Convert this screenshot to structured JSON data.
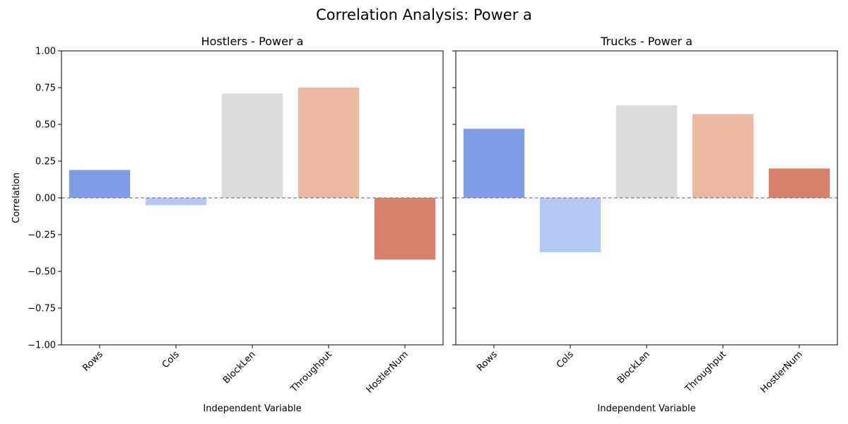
{
  "figure": {
    "suptitle": "Correlation Analysis: Power a"
  },
  "chart_data": [
    {
      "type": "bar",
      "title": "Hostlers - Power a",
      "xlabel": "Independent Variable",
      "ylabel": "Correlation",
      "categories": [
        "Rows",
        "Cols",
        "BlockLen",
        "Throughput",
        "HostlerNum"
      ],
      "values": [
        0.19,
        -0.05,
        0.71,
        0.75,
        -0.42
      ],
      "ylim": [
        -1.0,
        1.0
      ],
      "yticks": [
        "−1.00",
        "−0.75",
        "−0.50",
        "−0.25",
        "0.00",
        "0.25",
        "0.50",
        "0.75",
        "1.00"
      ],
      "ytick_values": [
        -1.0,
        -0.75,
        -0.5,
        -0.25,
        0.0,
        0.25,
        0.5,
        0.75,
        1.0
      ],
      "reference_line": 0.0,
      "bar_colors": [
        "#7f9de6",
        "#b3c9f3",
        "#dcdcdc",
        "#ecbaa2",
        "#d7816d"
      ],
      "grid": false
    },
    {
      "type": "bar",
      "title": "Trucks - Power a",
      "xlabel": "Independent Variable",
      "ylabel": "",
      "categories": [
        "Rows",
        "Cols",
        "BlockLen",
        "Throughput",
        "HostlerNum"
      ],
      "values": [
        0.47,
        -0.37,
        0.63,
        0.57,
        0.2
      ],
      "ylim": [
        -1.0,
        1.0
      ],
      "yticks": [],
      "ytick_values": [
        -1.0,
        -0.75,
        -0.5,
        -0.25,
        0.0,
        0.25,
        0.5,
        0.75,
        1.0
      ],
      "reference_line": 0.0,
      "bar_colors": [
        "#7f9de6",
        "#b3c9f3",
        "#dcdcdc",
        "#ecbaa2",
        "#d7816d"
      ],
      "grid": false
    }
  ]
}
